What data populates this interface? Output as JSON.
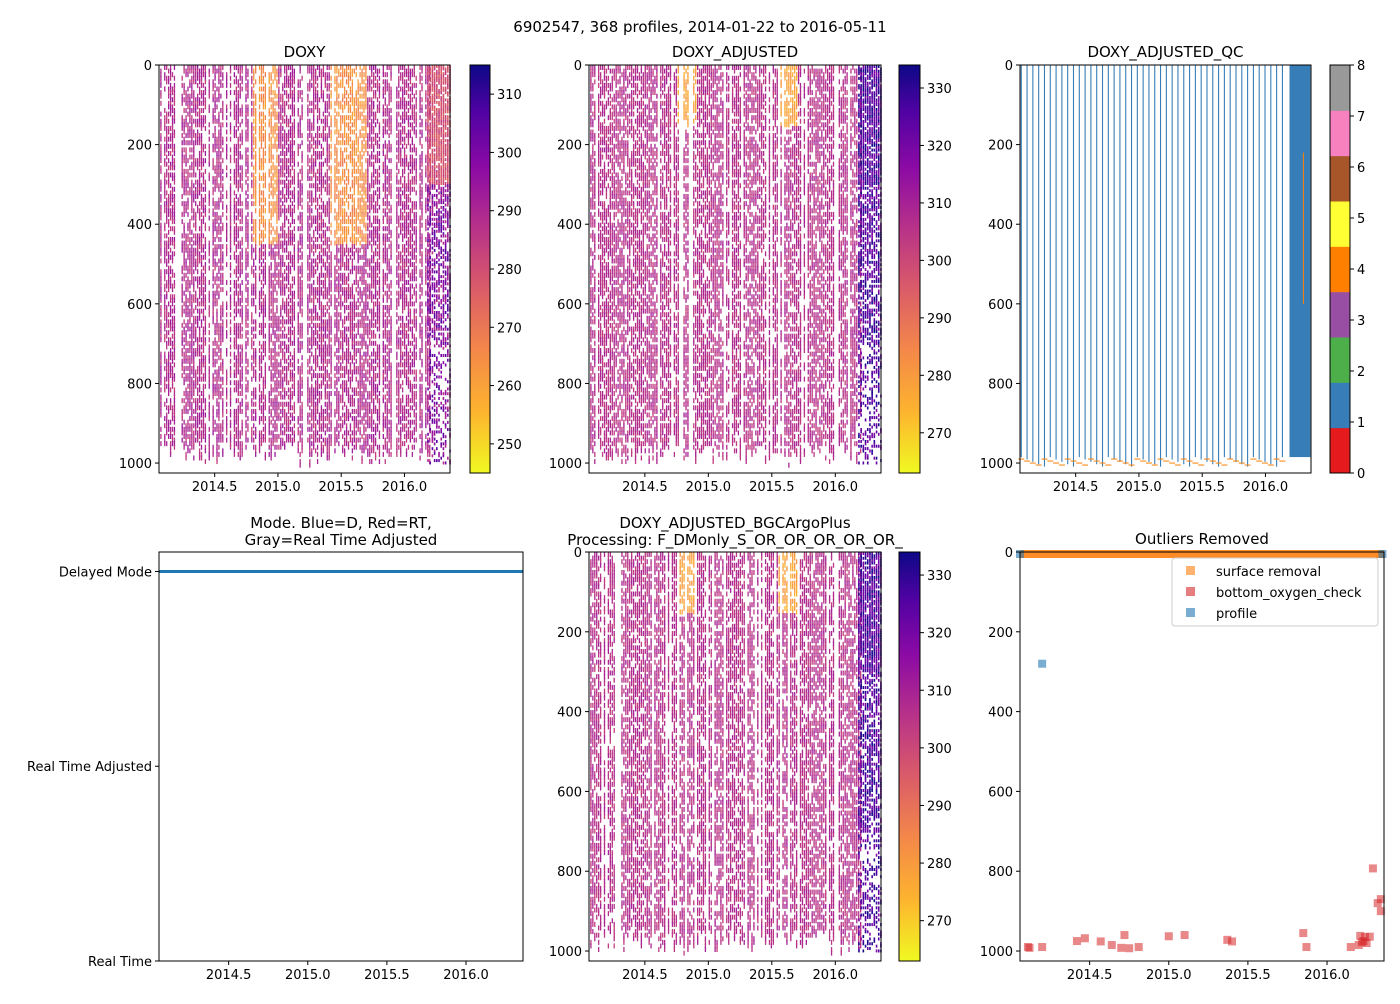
{
  "suptitle": "6902547, 368 profiles, 2014-01-22 to 2016-05-11",
  "colors": {
    "mode_blue": "#1f77b4",
    "surface": "#ff7f0e",
    "bottom": "#d62728",
    "profile": "#1f77b4"
  },
  "chart_data": [
    {
      "type": "heatmap",
      "title": "DOXY",
      "xlim": [
        2014.06,
        2016.36
      ],
      "ylim": [
        1025,
        0
      ],
      "xticks": [
        "2014.5",
        "2015.0",
        "2015.5",
        "2016.0"
      ],
      "xtick_values": [
        2014.5,
        2015.0,
        2015.5,
        2016.0
      ],
      "yticks": [
        "0",
        "200",
        "400",
        "600",
        "800",
        "1000"
      ],
      "ytick_values": [
        0,
        200,
        400,
        600,
        800,
        1000
      ],
      "colorbar": {
        "cmap": "plasma_r",
        "min": 245,
        "max": 315,
        "ticks": [
          "250",
          "260",
          "270",
          "280",
          "290",
          "300",
          "310"
        ],
        "tick_values": [
          250,
          260,
          270,
          280,
          290,
          300,
          310
        ]
      }
    },
    {
      "type": "heatmap",
      "title": "DOXY_ADJUSTED",
      "xlim": [
        2014.06,
        2016.36
      ],
      "ylim": [
        1025,
        0
      ],
      "xticks": [
        "2014.5",
        "2015.0",
        "2015.5",
        "2016.0"
      ],
      "xtick_values": [
        2014.5,
        2015.0,
        2015.5,
        2016.0
      ],
      "yticks": [
        "0",
        "200",
        "400",
        "600",
        "800",
        "1000"
      ],
      "ytick_values": [
        0,
        200,
        400,
        600,
        800,
        1000
      ],
      "colorbar": {
        "cmap": "plasma_r",
        "min": 263,
        "max": 334,
        "ticks": [
          "270",
          "280",
          "290",
          "300",
          "310",
          "320",
          "330"
        ],
        "tick_values": [
          270,
          280,
          290,
          300,
          310,
          320,
          330
        ]
      }
    },
    {
      "type": "heatmap",
      "title": "DOXY_ADJUSTED_QC",
      "xlim": [
        2014.06,
        2016.36
      ],
      "ylim": [
        1025,
        0
      ],
      "xticks": [
        "2014.5",
        "2015.0",
        "2015.5",
        "2016.0"
      ],
      "xtick_values": [
        2014.5,
        2015.0,
        2015.5,
        2016.0
      ],
      "yticks": [
        "0",
        "200",
        "400",
        "600",
        "800",
        "1000"
      ],
      "ytick_values": [
        0,
        200,
        400,
        600,
        800,
        1000
      ],
      "colorbar": {
        "cmap": "Set1",
        "min": 0,
        "max": 8,
        "ticks": [
          "0",
          "1",
          "2",
          "3",
          "4",
          "5",
          "6",
          "7",
          "8"
        ],
        "tick_values": [
          0,
          1,
          2,
          3,
          4,
          5,
          6,
          7,
          8
        ],
        "colors": [
          "#e41a1c",
          "#377eb8",
          "#4daf4a",
          "#984ea3",
          "#ff7f00",
          "#ffff33",
          "#a65628",
          "#f781bf",
          "#999999"
        ]
      }
    },
    {
      "type": "scatter",
      "title": "Mode. Blue=D, Red=RT,\nGray=Real Time Adjusted",
      "xlim": [
        2014.06,
        2016.36
      ],
      "xticks": [
        "2014.5",
        "2015.0",
        "2015.5",
        "2016.0"
      ],
      "xtick_values": [
        2014.5,
        2015.0,
        2015.5,
        2016.0
      ],
      "yticks": [
        "Delayed Mode",
        "Real Time Adjusted",
        "Real Time"
      ],
      "ytick_values": [
        2,
        1,
        0
      ],
      "ylim": [
        0,
        2.1
      ],
      "series": [
        {
          "name": "Delayed Mode",
          "y": 2,
          "x_range": [
            2014.06,
            2016.36
          ]
        }
      ]
    },
    {
      "type": "heatmap",
      "title": "DOXY_ADJUSTED_BGCArgoPlus\nProcessing: F_DMonly_S_OR_OR_OR_OR_OR_",
      "xlim": [
        2014.06,
        2016.36
      ],
      "ylim": [
        1025,
        0
      ],
      "xticks": [
        "2014.5",
        "2015.0",
        "2015.5",
        "2016.0"
      ],
      "xtick_values": [
        2014.5,
        2015.0,
        2015.5,
        2016.0
      ],
      "yticks": [
        "0",
        "200",
        "400",
        "600",
        "800",
        "1000"
      ],
      "ytick_values": [
        0,
        200,
        400,
        600,
        800,
        1000
      ],
      "colorbar": {
        "cmap": "plasma_r",
        "min": 263,
        "max": 334,
        "ticks": [
          "270",
          "280",
          "290",
          "300",
          "310",
          "320",
          "330"
        ],
        "tick_values": [
          270,
          280,
          290,
          300,
          310,
          320,
          330
        ]
      }
    },
    {
      "type": "scatter",
      "title": "Outliers Removed",
      "xlim": [
        2014.06,
        2016.36
      ],
      "ylim": [
        1025,
        0
      ],
      "xticks": [
        "2014.5",
        "2015.0",
        "2015.5",
        "2016.0"
      ],
      "xtick_values": [
        2014.5,
        2015.0,
        2015.5,
        2016.0
      ],
      "yticks": [
        "0",
        "200",
        "400",
        "600",
        "800",
        "1000"
      ],
      "ytick_values": [
        0,
        200,
        400,
        600,
        800,
        1000
      ],
      "legend": {
        "position": "top-right",
        "entries": [
          "surface removal",
          "bottom_oxygen_check",
          "profile"
        ]
      },
      "series": [
        {
          "name": "surface removal",
          "x_range": [
            2014.06,
            2016.36
          ],
          "y": [
            5,
            10
          ]
        },
        {
          "name": "bottom_oxygen_check",
          "points": [
            [
              2014.11,
              990
            ],
            [
              2014.12,
              992
            ],
            [
              2014.2,
              990
            ],
            [
              2014.42,
              975
            ],
            [
              2014.47,
              968
            ],
            [
              2014.57,
              976
            ],
            [
              2014.64,
              985
            ],
            [
              2014.7,
              992
            ],
            [
              2014.72,
              960
            ],
            [
              2014.75,
              993
            ],
            [
              2014.81,
              990
            ],
            [
              2015.0,
              963
            ],
            [
              2015.1,
              960
            ],
            [
              2015.37,
              972
            ],
            [
              2015.4,
              976
            ],
            [
              2015.85,
              955
            ],
            [
              2015.87,
              990
            ],
            [
              2016.15,
              990
            ],
            [
              2016.2,
              985
            ],
            [
              2016.21,
              962
            ],
            [
              2016.22,
              978
            ],
            [
              2016.23,
              975
            ],
            [
              2016.25,
              980
            ],
            [
              2016.27,
              964
            ],
            [
              2016.24,
              965
            ],
            [
              2016.29,
              793
            ],
            [
              2016.32,
              880
            ],
            [
              2016.34,
              870
            ],
            [
              2016.34,
              900
            ]
          ]
        },
        {
          "name": "profile",
          "points": [
            [
              2014.06,
              5
            ],
            [
              2014.2,
              280
            ],
            [
              2016.35,
              5
            ]
          ]
        }
      ]
    }
  ]
}
